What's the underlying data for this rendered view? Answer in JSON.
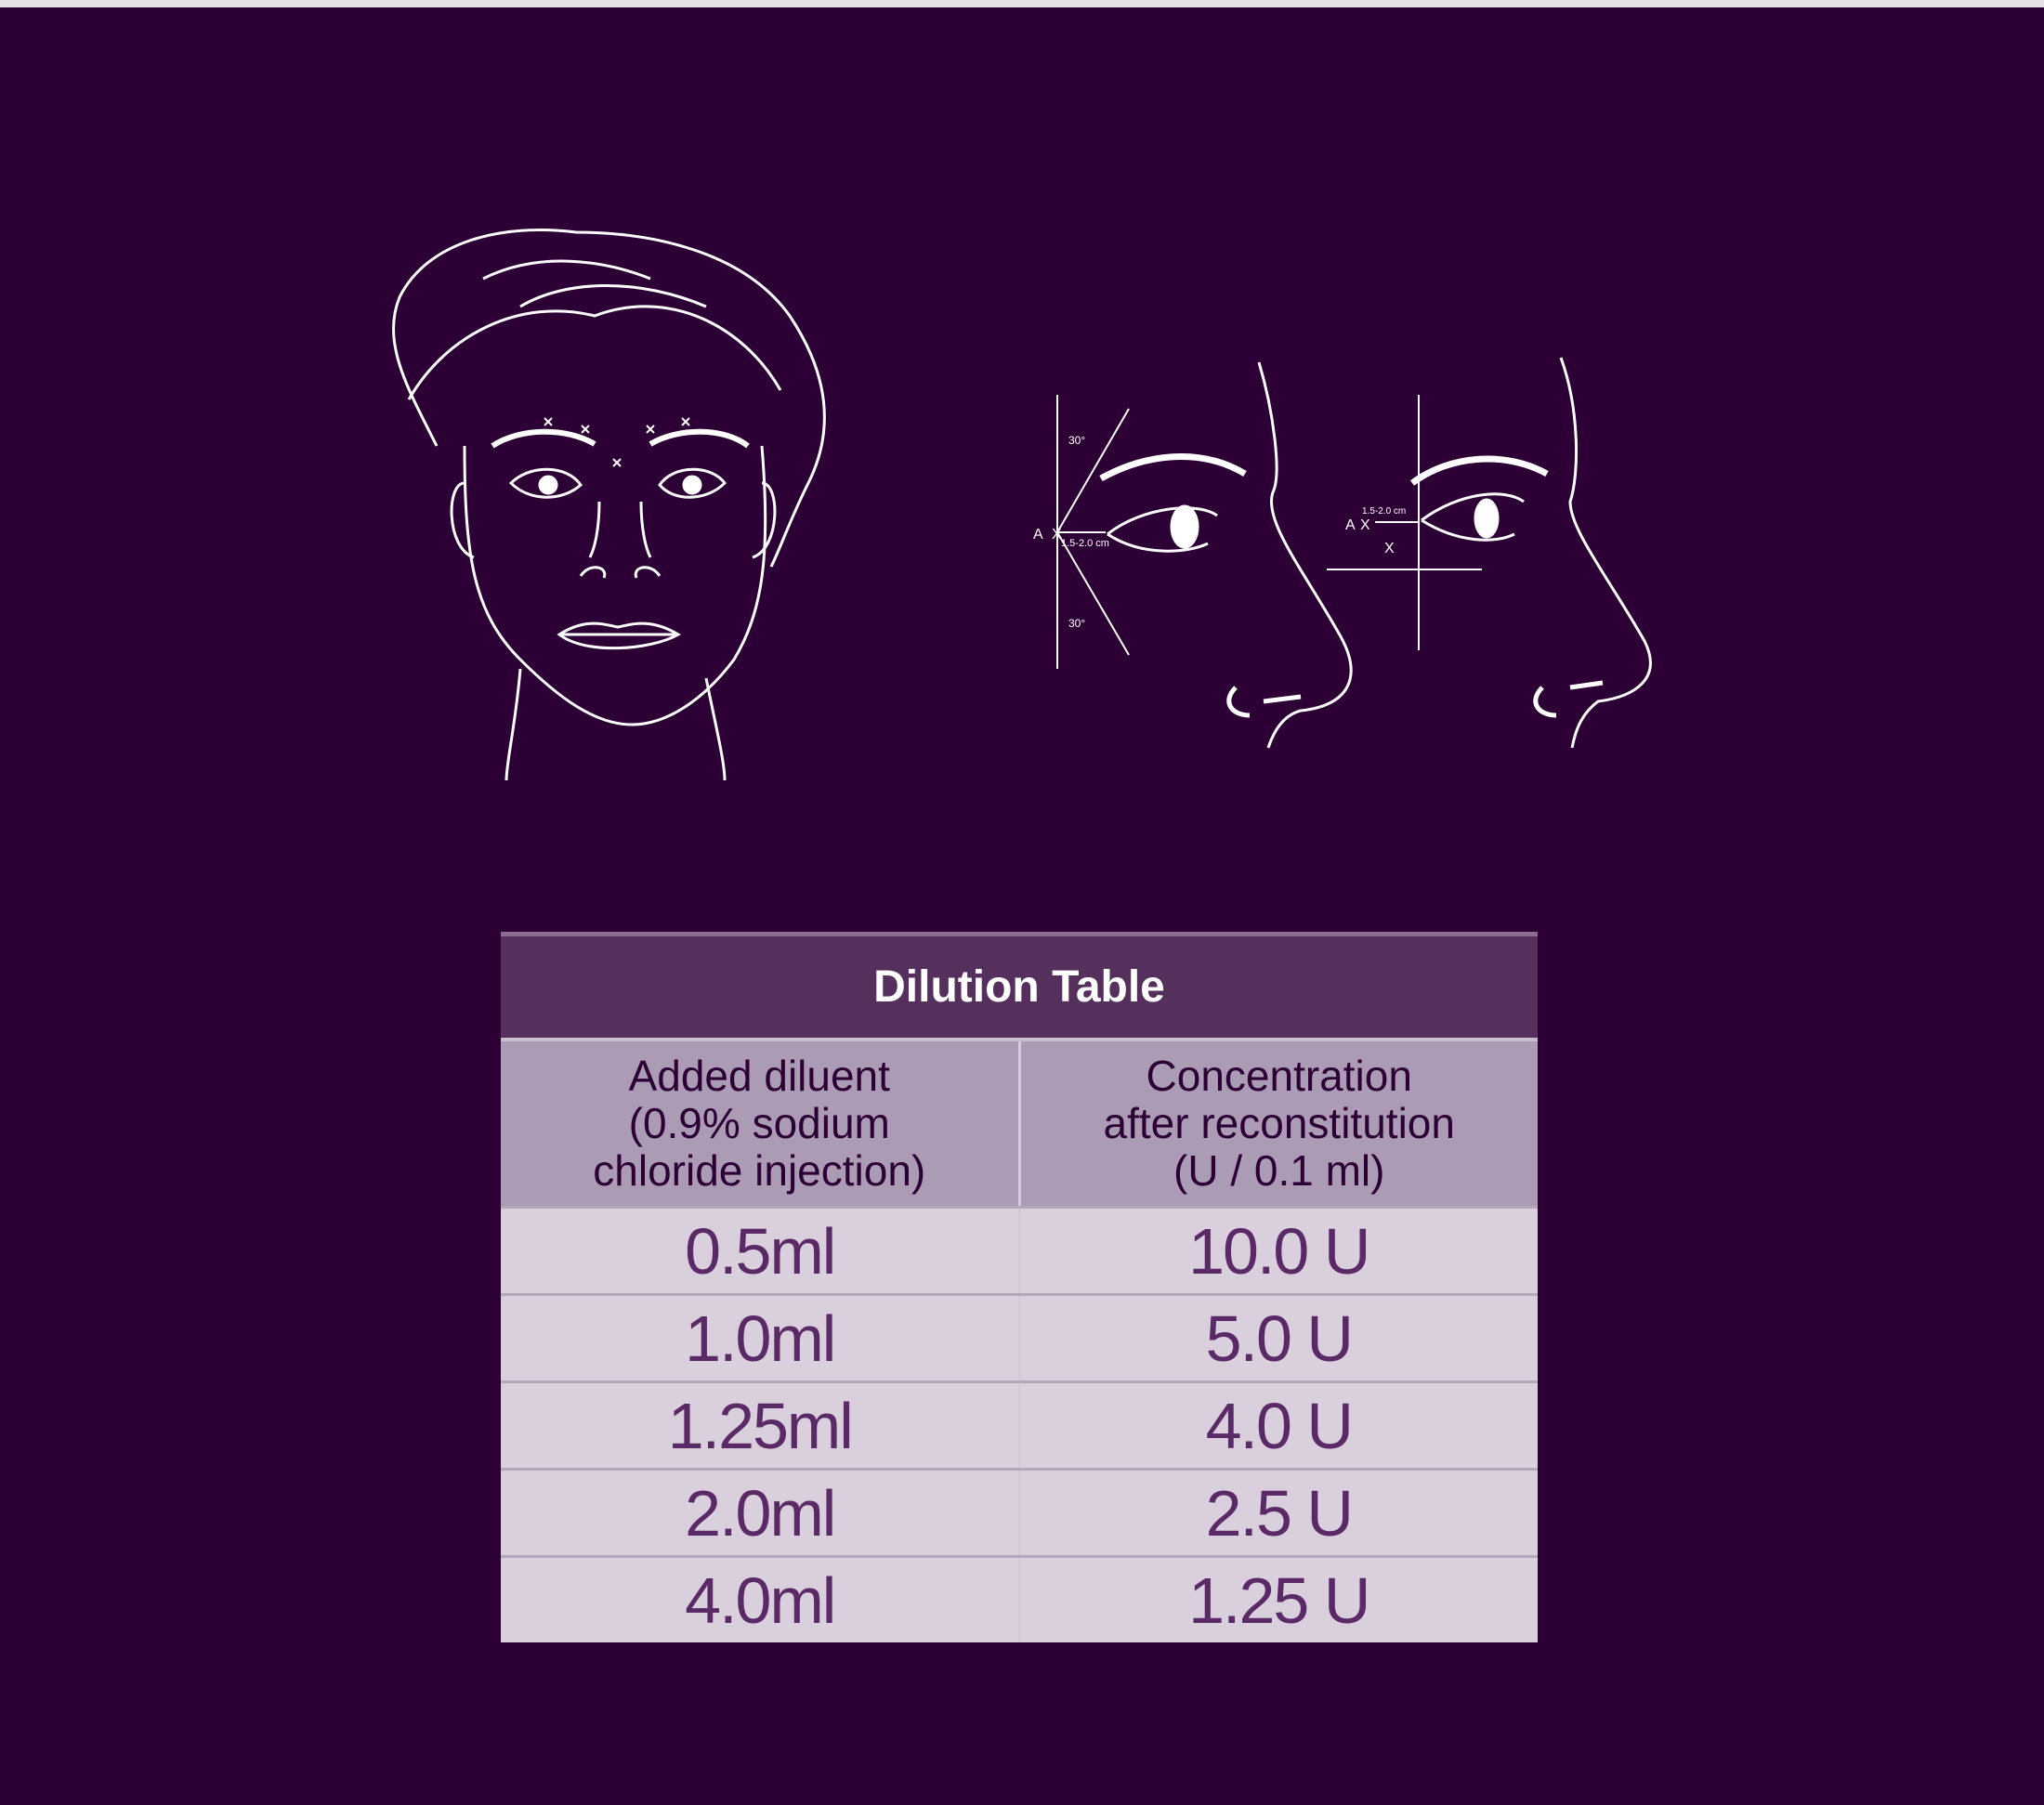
{
  "colors": {
    "background": "#2c0035",
    "title_band": "#56305d",
    "header": "#ab9bb5",
    "row": "#dacfdd",
    "row_text": "#5a2a66"
  },
  "diagram_labels": {
    "point_a": "A",
    "marker": "X",
    "angle": "30°",
    "distance": "1.5-2.0 cm"
  },
  "table": {
    "title": "Dilution Table",
    "headers": [
      [
        "Added diluent",
        "(0.9% sodium",
        "chloride injection)"
      ],
      [
        "Concentration",
        "after reconstitution",
        "(U / 0.1 ml)"
      ]
    ],
    "rows": [
      [
        "0.5ml",
        "10.0 U"
      ],
      [
        "1.0ml",
        "5.0 U"
      ],
      [
        "1.25ml",
        "4.0 U"
      ],
      [
        "2.0ml",
        "2.5 U"
      ],
      [
        "4.0ml",
        "1.25 U"
      ]
    ]
  }
}
